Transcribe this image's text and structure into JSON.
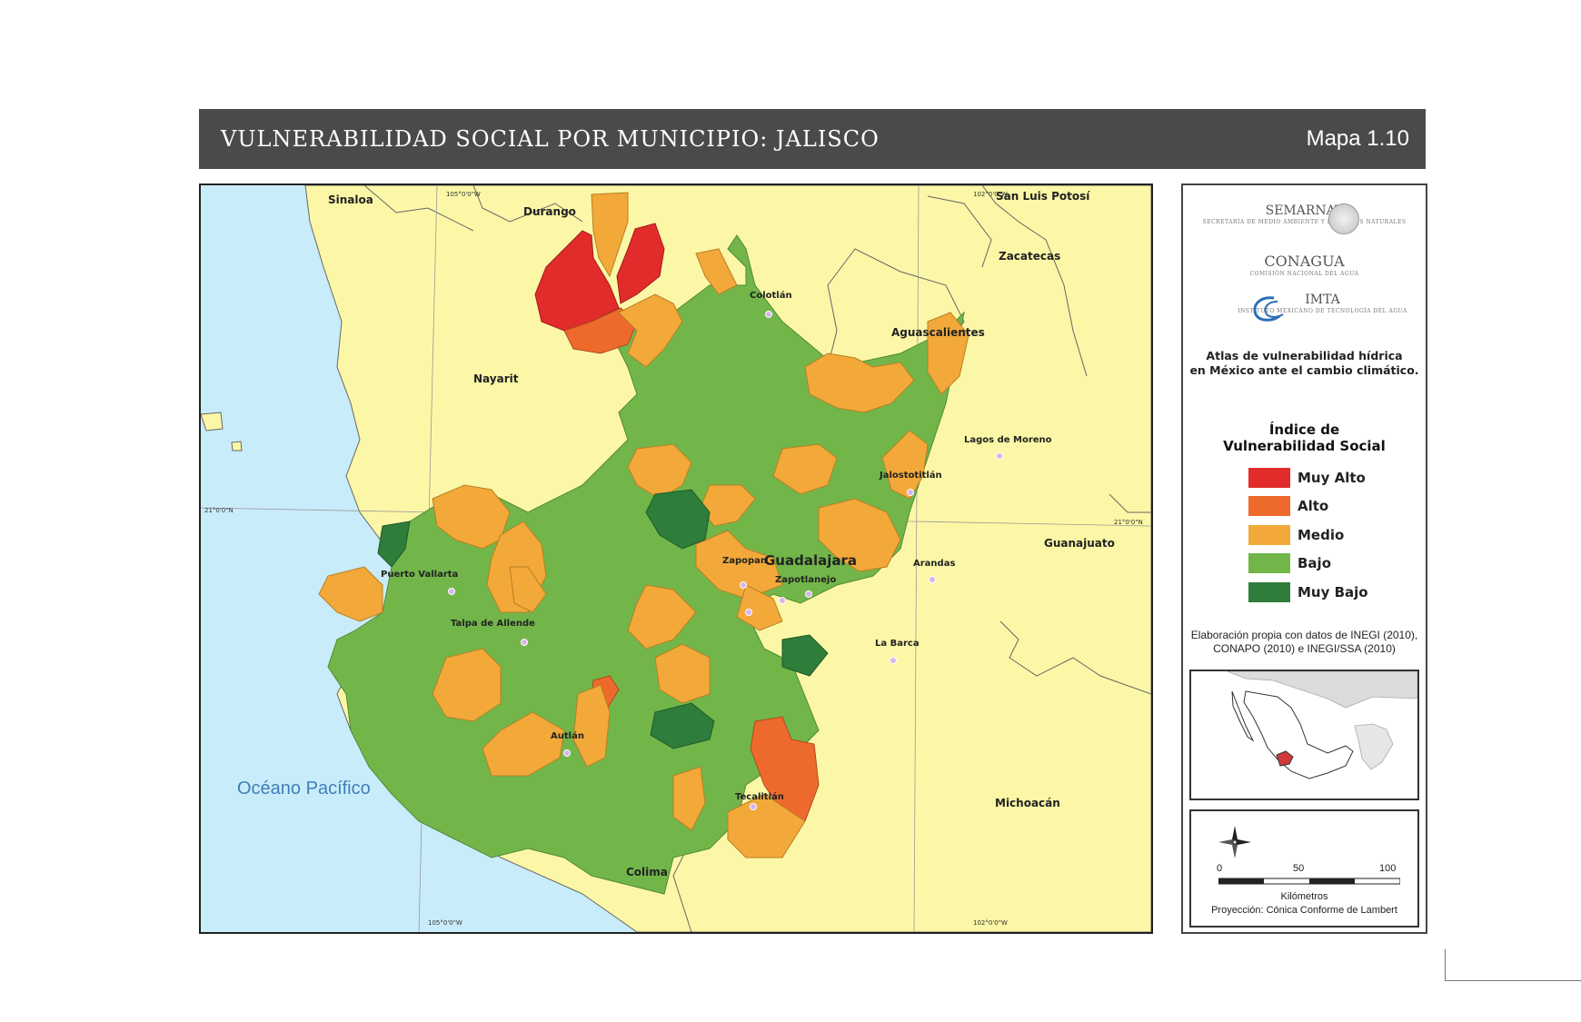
{
  "header": {
    "title": "VULNERABILIDAD SOCIAL POR MUNICIPIO: JALISCO",
    "map_number": "Mapa 1.10"
  },
  "map": {
    "ocean_label": "Océano Pacífico",
    "states": {
      "sinaloa": "Sinaloa",
      "durango": "Durango",
      "san_luis_potosi": "San Luis Potosí",
      "zacatecas": "Zacatecas",
      "aguascalientes": "Aguascalientes",
      "nayarit": "Nayarit",
      "guanajuato": "Guanajuato",
      "michoacan": "Michoacán",
      "colima": "Colima"
    },
    "cities": {
      "colotlan": "Colotlán",
      "lagos_de_moreno": "Lagos de Moreno",
      "jalostotitlan": "Jalostotitlán",
      "zapopan": "Zapopan",
      "guadalajara": "Guadalajara",
      "zapotlanejo": "Zapotlanejo",
      "arandas": "Arandas",
      "puerto_vallarta": "Puerto Vallarta",
      "talpa_de_allende": "Talpa de Allende",
      "la_barca": "La Barca",
      "autlan": "Autlán",
      "tecalitlan": "Tecalitlán"
    },
    "graticule": {
      "lon_105_top": "105°0'0\"W",
      "lon_102_top": "102°0'0\"W",
      "lon_105_bottom": "105°0'0\"W",
      "lon_102_bottom": "102°0'0\"W",
      "lat_21_left": "21°0'0\"N",
      "lat_21_right": "21°0'0\"N"
    }
  },
  "panel": {
    "logos": {
      "semarnat": "SEMARNAT",
      "semarnat_sub": "SECRETARÍA DE MEDIO AMBIENTE Y RECURSOS NATURALES",
      "conagua": "CONAGUA",
      "conagua_sub": "COMISIÓN NACIONAL DEL AGUA",
      "imta": "IMTA",
      "imta_sub": "INSTITUTO MEXICANO DE TECNOLOGÍA DEL AGUA"
    },
    "atlas_line1": "Atlas de vulnerabilidad hídrica",
    "atlas_line2": "en México ante el cambio climático.",
    "legend_title_1": "Índice de",
    "legend_title_2": "Vulnerabilidad Social",
    "legend": [
      {
        "label": "Muy Alto",
        "color": "#e22b2b"
      },
      {
        "label": "Alto",
        "color": "#ee6a2c"
      },
      {
        "label": "Medio",
        "color": "#f2a93a"
      },
      {
        "label": "Bajo",
        "color": "#72b64a"
      },
      {
        "label": "Muy Bajo",
        "color": "#2e7d3a"
      }
    ],
    "credits_line1": "Elaboración propia con datos de INEGI (2010),",
    "credits_line2": "CONAPO (2010) e INEGI/SSA (2010)",
    "scale": {
      "tick_0": "0",
      "tick_50": "50",
      "tick_100": "100",
      "unit": "Kilómetros",
      "projection": "Proyección: Cónica Conforme de Lambert"
    }
  },
  "colors": {
    "sea": "#c9ecfb",
    "land": "#fbf7a6",
    "title_bar": "#4a4a48"
  }
}
